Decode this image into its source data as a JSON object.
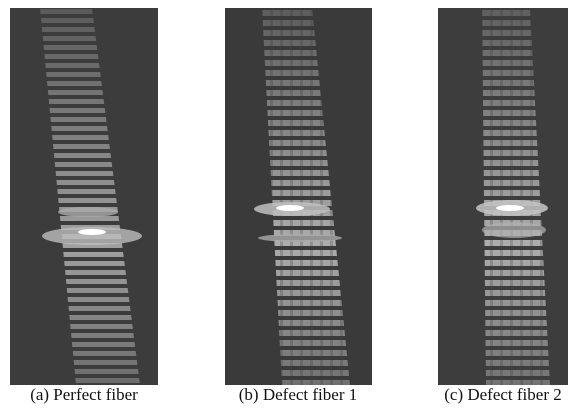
{
  "figure": {
    "panels": [
      {
        "caption": "(a) Perfect fiber"
      },
      {
        "caption": "(b) Defect fiber 1"
      },
      {
        "caption": "(c) Defect fiber 2"
      }
    ]
  }
}
